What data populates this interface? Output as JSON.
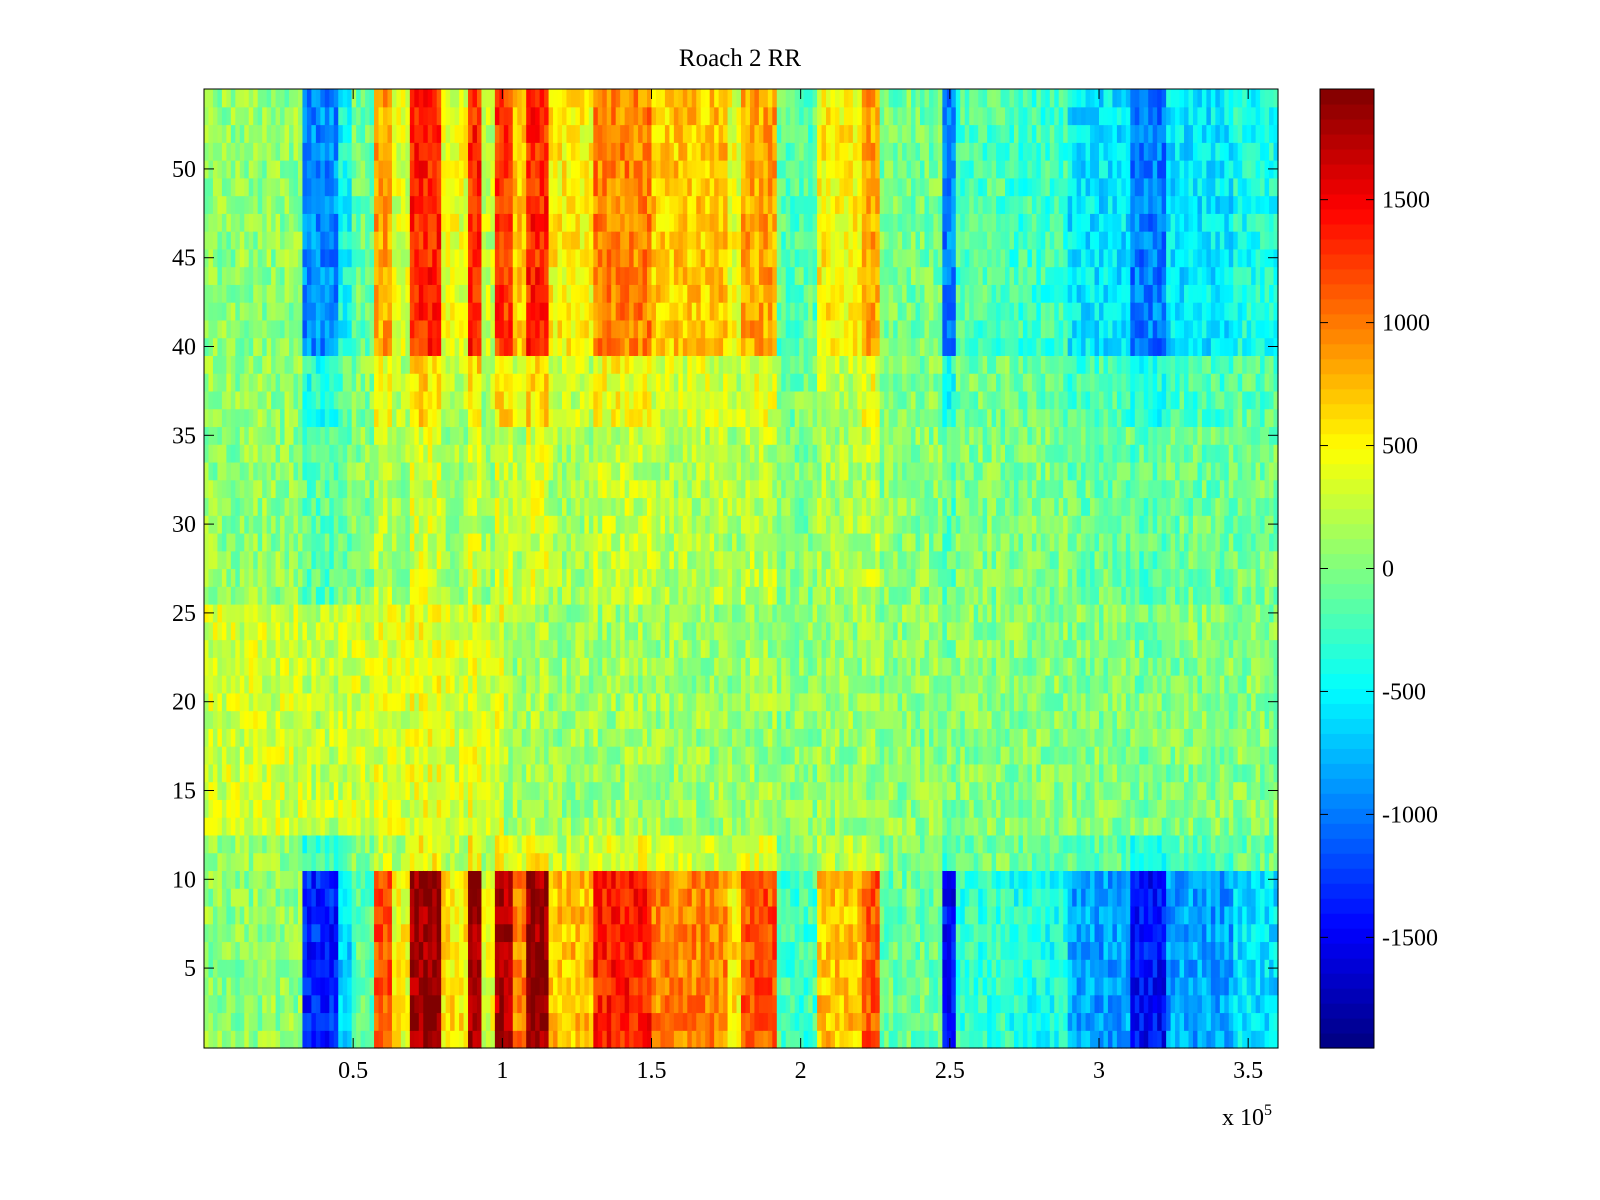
{
  "chart_data": {
    "type": "heatmap",
    "title": "Roach 2 RR",
    "xlabel": "",
    "ylabel": "",
    "x_exponent_label": {
      "base": "x 10",
      "exponent": "5"
    },
    "xlim": [
      0,
      360000
    ],
    "ylim": [
      0.5,
      54.5
    ],
    "x_ticks": [
      {
        "value": 50000,
        "label": "0.5"
      },
      {
        "value": 100000,
        "label": "1"
      },
      {
        "value": 150000,
        "label": "1.5"
      },
      {
        "value": 200000,
        "label": "2"
      },
      {
        "value": 250000,
        "label": "2.5"
      },
      {
        "value": 300000,
        "label": "3"
      },
      {
        "value": 350000,
        "label": "3.5"
      }
    ],
    "y_ticks": [
      {
        "value": 5,
        "label": "5"
      },
      {
        "value": 10,
        "label": "10"
      },
      {
        "value": 15,
        "label": "15"
      },
      {
        "value": 20,
        "label": "20"
      },
      {
        "value": 25,
        "label": "25"
      },
      {
        "value": 30,
        "label": "30"
      },
      {
        "value": 35,
        "label": "35"
      },
      {
        "value": 40,
        "label": "40"
      },
      {
        "value": 45,
        "label": "45"
      },
      {
        "value": 50,
        "label": "50"
      }
    ],
    "colormap": "jet",
    "clim": [
      -1950,
      1950
    ],
    "colorbar_ticks": [
      {
        "value": 1500,
        "label": "1500"
      },
      {
        "value": 1000,
        "label": "1000"
      },
      {
        "value": 500,
        "label": "500"
      },
      {
        "value": 0,
        "label": "0"
      },
      {
        "value": -500,
        "label": "-500"
      },
      {
        "value": -1000,
        "label": "-1000"
      },
      {
        "value": -1500,
        "label": "-1500"
      }
    ],
    "rows": 54,
    "row_bands": [
      {
        "from": 1,
        "to": 10,
        "strength": 1.0
      },
      {
        "from": 11,
        "to": 12,
        "strength": 0.25
      },
      {
        "from": 13,
        "to": 25,
        "strength": 0.05
      },
      {
        "from": 26,
        "to": 35,
        "strength": 0.15
      },
      {
        "from": 36,
        "to": 39,
        "strength": 0.3
      },
      {
        "from": 40,
        "to": 54,
        "strength": 0.7
      }
    ],
    "column_profile": [
      {
        "x_start": 0,
        "x_end": 33000,
        "value": 0
      },
      {
        "x_start": 33000,
        "x_end": 45000,
        "value": -1400
      },
      {
        "x_start": 45000,
        "x_end": 50000,
        "value": -700
      },
      {
        "x_start": 50000,
        "x_end": 57000,
        "value": -200
      },
      {
        "x_start": 57000,
        "x_end": 63000,
        "value": 1100
      },
      {
        "x_start": 63000,
        "x_end": 69000,
        "value": 400
      },
      {
        "x_start": 69000,
        "x_end": 80000,
        "value": 1800
      },
      {
        "x_start": 80000,
        "x_end": 89000,
        "value": 500
      },
      {
        "x_start": 89000,
        "x_end": 93000,
        "value": 1800
      },
      {
        "x_start": 93000,
        "x_end": 98000,
        "value": 300
      },
      {
        "x_start": 98000,
        "x_end": 104000,
        "value": 1700
      },
      {
        "x_start": 104000,
        "x_end": 108000,
        "value": 900
      },
      {
        "x_start": 108000,
        "x_end": 115000,
        "value": 1800
      },
      {
        "x_start": 115000,
        "x_end": 130000,
        "value": 650
      },
      {
        "x_start": 130000,
        "x_end": 150000,
        "value": 1300
      },
      {
        "x_start": 150000,
        "x_end": 175000,
        "value": 900
      },
      {
        "x_start": 175000,
        "x_end": 180000,
        "value": 500
      },
      {
        "x_start": 180000,
        "x_end": 192000,
        "value": 1100
      },
      {
        "x_start": 192000,
        "x_end": 205000,
        "value": -300
      },
      {
        "x_start": 205000,
        "x_end": 220000,
        "value": 650
      },
      {
        "x_start": 220000,
        "x_end": 227000,
        "value": 1100
      },
      {
        "x_start": 227000,
        "x_end": 248000,
        "value": -150
      },
      {
        "x_start": 248000,
        "x_end": 252000,
        "value": -1500
      },
      {
        "x_start": 252000,
        "x_end": 270000,
        "value": -350
      },
      {
        "x_start": 270000,
        "x_end": 290000,
        "value": -450
      },
      {
        "x_start": 290000,
        "x_end": 310000,
        "value": -900
      },
      {
        "x_start": 310000,
        "x_end": 322000,
        "value": -1500
      },
      {
        "x_start": 322000,
        "x_end": 345000,
        "value": -900
      },
      {
        "x_start": 345000,
        "x_end": 360000,
        "value": -650
      }
    ]
  }
}
